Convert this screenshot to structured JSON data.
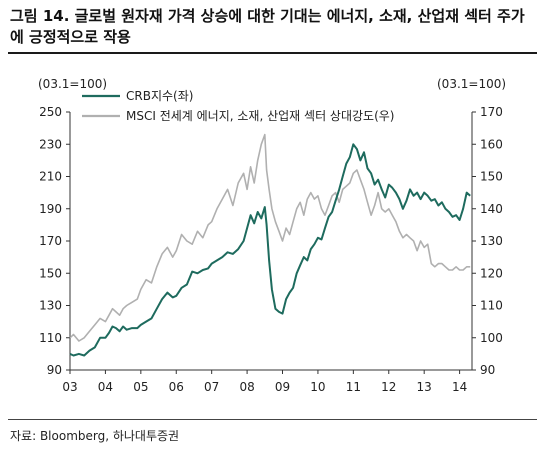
{
  "figure": {
    "title": "그림 14. 글로벌 원자재 가격 상승에 대한 기대는 에너지, 소재, 산업재 섹터 주가에 긍정적으로 작용",
    "source": "자료: Bloomberg, 하나대투증권"
  },
  "chart_data": {
    "type": "line",
    "title": "그림 14. 글로벌 원자재 가격 상승에 대한 기대는 에너지, 소재, 산업재 섹터 주가에 긍정적으로 작용",
    "x_ticks": [
      "03",
      "04",
      "05",
      "06",
      "07",
      "08",
      "09",
      "10",
      "11",
      "12",
      "13",
      "14"
    ],
    "xlim": [
      2003,
      2014.35
    ],
    "y_left": {
      "label": "(03.1=100)",
      "lim": [
        90,
        250
      ],
      "ticks": [
        90,
        110,
        130,
        150,
        170,
        190,
        210,
        230,
        250
      ]
    },
    "y_right": {
      "label": "(03.1=100)",
      "lim": [
        90,
        170
      ],
      "ticks": [
        90,
        100,
        110,
        120,
        130,
        140,
        150,
        160,
        170
      ]
    },
    "grid": false,
    "legend_position": "top-left",
    "series": [
      {
        "name": "CRB지수(좌)",
        "axis": "left",
        "color": "#1e6b5e",
        "x": [
          2003.0,
          2003.1,
          2003.25,
          2003.4,
          2003.55,
          2003.7,
          2003.85,
          2004.0,
          2004.1,
          2004.2,
          2004.3,
          2004.4,
          2004.5,
          2004.6,
          2004.75,
          2004.9,
          2005.0,
          2005.15,
          2005.3,
          2005.45,
          2005.6,
          2005.75,
          2005.9,
          2006.0,
          2006.15,
          2006.3,
          2006.45,
          2006.6,
          2006.75,
          2006.9,
          2007.0,
          2007.15,
          2007.3,
          2007.45,
          2007.6,
          2007.75,
          2007.9,
          2008.0,
          2008.1,
          2008.2,
          2008.3,
          2008.4,
          2008.5,
          2008.55,
          2008.62,
          2008.7,
          2008.8,
          2008.9,
          2009.0,
          2009.1,
          2009.2,
          2009.3,
          2009.4,
          2009.5,
          2009.6,
          2009.7,
          2009.8,
          2009.9,
          2010.0,
          2010.1,
          2010.2,
          2010.3,
          2010.4,
          2010.5,
          2010.6,
          2010.7,
          2010.8,
          2010.9,
          2011.0,
          2011.1,
          2011.2,
          2011.3,
          2011.4,
          2011.5,
          2011.6,
          2011.7,
          2011.8,
          2011.9,
          2012.0,
          2012.1,
          2012.2,
          2012.3,
          2012.4,
          2012.5,
          2012.6,
          2012.7,
          2012.8,
          2012.9,
          2013.0,
          2013.1,
          2013.2,
          2013.3,
          2013.4,
          2013.5,
          2013.6,
          2013.7,
          2013.8,
          2013.9,
          2014.0,
          2014.1,
          2014.2,
          2014.3
        ],
        "values": [
          100,
          99,
          100,
          99,
          102,
          104,
          110,
          110,
          113,
          117,
          116,
          114,
          117,
          115,
          116,
          116,
          118,
          120,
          122,
          128,
          134,
          138,
          135,
          136,
          141,
          143,
          151,
          150,
          152,
          153,
          156,
          158,
          160,
          163,
          162,
          165,
          170,
          178,
          186,
          181,
          188,
          184,
          191,
          180,
          158,
          140,
          128,
          126,
          125,
          134,
          138,
          141,
          150,
          155,
          160,
          158,
          165,
          168,
          172,
          171,
          178,
          185,
          188,
          195,
          202,
          210,
          218,
          222,
          230,
          227,
          220,
          225,
          215,
          212,
          205,
          208,
          202,
          197,
          205,
          203,
          200,
          196,
          190,
          195,
          202,
          198,
          200,
          196,
          200,
          198,
          195,
          196,
          192,
          194,
          190,
          188,
          185,
          186,
          183,
          190,
          200,
          198
        ]
      },
      {
        "name": "MSCI 전세계 에너지, 소재, 산업재 섹터 상대강도(우)",
        "axis": "right",
        "color": "#b0b0b0",
        "x": [
          2003.0,
          2003.1,
          2003.25,
          2003.4,
          2003.55,
          2003.7,
          2003.85,
          2004.0,
          2004.1,
          2004.2,
          2004.3,
          2004.4,
          2004.5,
          2004.6,
          2004.75,
          2004.9,
          2005.0,
          2005.15,
          2005.3,
          2005.45,
          2005.6,
          2005.75,
          2005.9,
          2006.0,
          2006.15,
          2006.3,
          2006.45,
          2006.6,
          2006.75,
          2006.9,
          2007.0,
          2007.15,
          2007.3,
          2007.45,
          2007.6,
          2007.75,
          2007.9,
          2008.0,
          2008.1,
          2008.2,
          2008.3,
          2008.4,
          2008.5,
          2008.55,
          2008.62,
          2008.7,
          2008.8,
          2008.9,
          2009.0,
          2009.1,
          2009.2,
          2009.3,
          2009.4,
          2009.5,
          2009.6,
          2009.7,
          2009.8,
          2009.9,
          2010.0,
          2010.1,
          2010.2,
          2010.3,
          2010.4,
          2010.5,
          2010.6,
          2010.7,
          2010.8,
          2010.9,
          2011.0,
          2011.1,
          2011.2,
          2011.3,
          2011.4,
          2011.5,
          2011.6,
          2011.7,
          2011.8,
          2011.9,
          2012.0,
          2012.1,
          2012.2,
          2012.3,
          2012.4,
          2012.5,
          2012.6,
          2012.7,
          2012.8,
          2012.9,
          2013.0,
          2013.1,
          2013.2,
          2013.3,
          2013.4,
          2013.5,
          2013.6,
          2013.7,
          2013.8,
          2013.9,
          2014.0,
          2014.1,
          2014.2,
          2014.3
        ],
        "values": [
          100,
          101,
          99,
          100,
          102,
          104,
          106,
          105,
          107,
          109,
          108,
          107,
          109,
          110,
          111,
          112,
          115,
          118,
          117,
          122,
          126,
          128,
          125,
          127,
          132,
          130,
          129,
          133,
          131,
          135,
          136,
          140,
          143,
          146,
          141,
          148,
          151,
          146,
          153,
          148,
          155,
          160,
          163,
          152,
          146,
          140,
          136,
          133,
          130,
          134,
          132,
          136,
          140,
          142,
          138,
          143,
          145,
          143,
          144,
          140,
          138,
          141,
          144,
          145,
          142,
          146,
          147,
          148,
          151,
          152,
          149,
          146,
          142,
          138,
          141,
          145,
          140,
          139,
          140,
          138,
          136,
          133,
          131,
          132,
          131,
          130,
          127,
          130,
          128,
          129,
          123,
          122,
          123,
          123,
          122,
          121,
          121,
          122,
          121,
          121,
          122,
          122
        ]
      }
    ]
  }
}
